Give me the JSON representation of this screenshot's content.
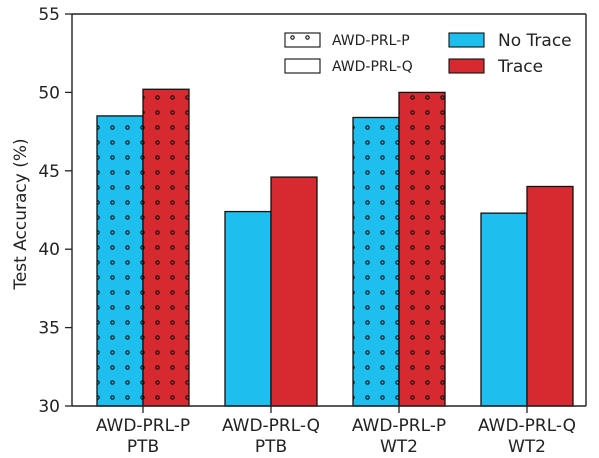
{
  "chart_data": {
    "type": "bar",
    "ylabel": "Test Accuracy (%)",
    "ylim": [
      30,
      55
    ],
    "yticks": [
      30,
      35,
      40,
      45,
      50,
      55
    ],
    "categories": [
      {
        "line1": "AWD-PRL-P",
        "line2": "PTB",
        "pattern": "dots"
      },
      {
        "line1": "AWD-PRL-Q",
        "line2": "PTB",
        "pattern": "none"
      },
      {
        "line1": "AWD-PRL-P",
        "line2": "WT2",
        "pattern": "dots"
      },
      {
        "line1": "AWD-PRL-Q",
        "line2": "WT2",
        "pattern": "none"
      }
    ],
    "series": [
      {
        "name": "No Trace",
        "color": "#1ebfef",
        "values": [
          48.5,
          42.4,
          48.4,
          42.3
        ]
      },
      {
        "name": "Trace",
        "color": "#d62a30",
        "values": [
          50.2,
          44.6,
          50.0,
          44.0
        ]
      }
    ],
    "pattern_legend": [
      {
        "label": "AWD-PRL-P",
        "pattern": "dots"
      },
      {
        "label": "AWD-PRL-Q",
        "pattern": "none"
      }
    ],
    "legend_placement": "top-right",
    "grid": false
  }
}
